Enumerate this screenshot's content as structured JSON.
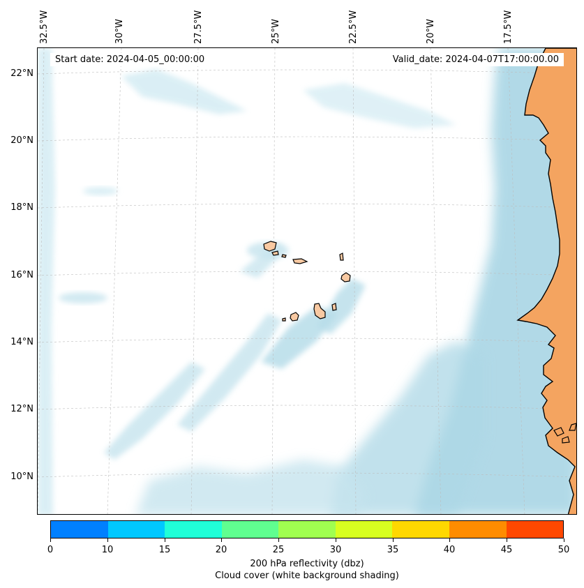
{
  "map": {
    "projection": "lambert-conformal",
    "extent": {
      "lon_min": -33.0,
      "lon_max": -16.0,
      "lat_min": 9.0,
      "lat_max": 22.5
    },
    "gridlines": "dashed-light-gray",
    "land_color": "#f4a460",
    "coastline_color": "#000000",
    "cloud_color": "#add8e6",
    "lon_labels": [
      "32.5°W",
      "30°W",
      "27.5°W",
      "25°W",
      "22.5°W",
      "20°W",
      "17.5°W"
    ],
    "lat_labels": [
      "22°N",
      "20°N",
      "18°N",
      "16°N",
      "14°N",
      "12°N",
      "10°N"
    ]
  },
  "header": {
    "start_date": "Start date: 2024-04-05_00:00:00",
    "valid_date": "Valid_date: 2024-04-07T17:00:00.00"
  },
  "colorbar": {
    "ticks": [
      "0",
      "10",
      "15",
      "20",
      "25",
      "30",
      "35",
      "40",
      "45",
      "50"
    ],
    "colors": [
      "#0080ff",
      "#00c8ff",
      "#20ffd8",
      "#60ff90",
      "#a0ff50",
      "#d8ff20",
      "#ffd800",
      "#ff8c00",
      "#ff4800"
    ],
    "label": "200 hPa reflectivity (dbz)",
    "sublabel": "Cloud cover (white background shading)"
  }
}
